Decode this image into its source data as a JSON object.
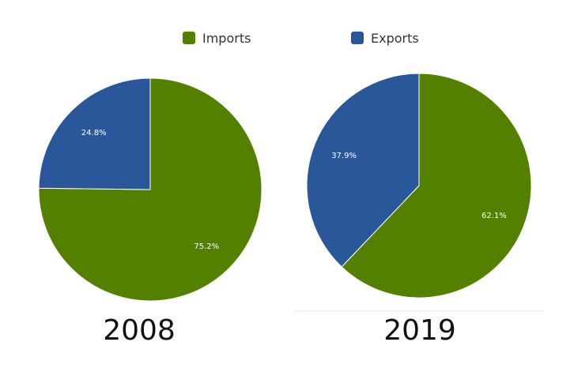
{
  "legend": [
    {
      "label": "Imports",
      "color": "#548000"
    },
    {
      "label": "Exports",
      "color": "#2a579a"
    }
  ],
  "chart_data": [
    {
      "type": "pie",
      "title": "2008",
      "labels": [
        "Imports",
        "Exports"
      ],
      "values": [
        75.2,
        24.8
      ],
      "value_labels": [
        "75.2%",
        "24.8%"
      ],
      "colors": [
        "#548000",
        "#2a579a"
      ],
      "legend": "top"
    },
    {
      "type": "pie",
      "title": "2019",
      "labels": [
        "Imports",
        "Exports"
      ],
      "values": [
        62.1,
        37.9
      ],
      "value_labels": [
        "62.1%",
        "37.9%"
      ],
      "colors": [
        "#548000",
        "#2a579a"
      ],
      "legend": "top"
    }
  ]
}
